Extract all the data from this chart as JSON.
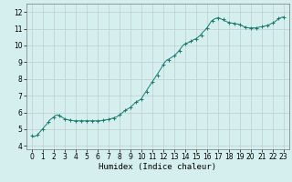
{
  "title": "",
  "xlabel": "Humidex (Indice chaleur)",
  "ylabel": "",
  "xlim": [
    -0.5,
    23.5
  ],
  "ylim": [
    3.8,
    12.5
  ],
  "yticks": [
    4,
    5,
    6,
    7,
    8,
    9,
    10,
    11,
    12
  ],
  "xticks": [
    0,
    1,
    2,
    3,
    4,
    5,
    6,
    7,
    8,
    9,
    10,
    11,
    12,
    13,
    14,
    15,
    16,
    17,
    18,
    19,
    20,
    21,
    22,
    23
  ],
  "line_color": "#1a7a6e",
  "marker_color": "#1a7a6e",
  "bg_color": "#d5efee",
  "grid_color": "#bccece",
  "x": [
    0.0,
    0.1,
    0.2,
    0.3,
    0.4,
    0.5,
    0.6,
    0.7,
    0.8,
    0.9,
    1.0,
    1.1,
    1.2,
    1.3,
    1.4,
    1.5,
    1.6,
    1.7,
    1.8,
    1.9,
    2.0,
    2.1,
    2.2,
    2.3,
    2.4,
    2.5,
    2.6,
    2.7,
    2.8,
    2.9,
    3.0,
    3.1,
    3.2,
    3.3,
    3.4,
    3.5,
    3.6,
    3.7,
    3.8,
    3.9,
    4.0,
    4.2,
    4.4,
    4.6,
    4.8,
    5.0,
    5.2,
    5.4,
    5.6,
    5.8,
    6.0,
    6.2,
    6.4,
    6.6,
    6.8,
    7.0,
    7.2,
    7.4,
    7.6,
    7.8,
    8.0,
    8.2,
    8.4,
    8.6,
    8.8,
    9.0,
    9.2,
    9.4,
    9.6,
    9.8,
    10.0,
    10.2,
    10.4,
    10.6,
    10.8,
    11.0,
    11.2,
    11.4,
    11.6,
    11.8,
    12.0,
    12.2,
    12.4,
    12.6,
    12.8,
    13.0,
    13.2,
    13.4,
    13.6,
    13.8,
    14.0,
    14.2,
    14.4,
    14.6,
    14.8,
    15.0,
    15.2,
    15.4,
    15.6,
    15.8,
    16.0,
    16.2,
    16.4,
    16.6,
    16.8,
    17.0,
    17.2,
    17.4,
    17.6,
    17.8,
    18.0,
    18.2,
    18.4,
    18.6,
    18.8,
    19.0,
    19.2,
    19.4,
    19.6,
    19.8,
    20.0,
    20.2,
    20.4,
    20.6,
    20.8,
    21.0,
    21.2,
    21.4,
    21.6,
    21.8,
    22.0,
    22.2,
    22.4,
    22.6,
    22.8,
    23.0
  ],
  "y": [
    4.6,
    4.55,
    4.55,
    4.58,
    4.6,
    4.65,
    4.72,
    4.8,
    4.88,
    4.95,
    5.02,
    5.1,
    5.18,
    5.25,
    5.32,
    5.42,
    5.5,
    5.58,
    5.62,
    5.68,
    5.72,
    5.78,
    5.82,
    5.85,
    5.85,
    5.82,
    5.78,
    5.73,
    5.7,
    5.66,
    5.62,
    5.6,
    5.58,
    5.56,
    5.55,
    5.54,
    5.53,
    5.52,
    5.51,
    5.5,
    5.5,
    5.5,
    5.5,
    5.5,
    5.5,
    5.5,
    5.5,
    5.5,
    5.5,
    5.5,
    5.5,
    5.5,
    5.52,
    5.54,
    5.56,
    5.58,
    5.62,
    5.66,
    5.7,
    5.75,
    5.85,
    5.95,
    6.05,
    6.15,
    6.22,
    6.3,
    6.42,
    6.55,
    6.65,
    6.72,
    6.8,
    7.02,
    7.22,
    7.42,
    7.62,
    7.82,
    8.02,
    8.22,
    8.42,
    8.62,
    8.85,
    9.05,
    9.15,
    9.22,
    9.3,
    9.38,
    9.5,
    9.65,
    9.82,
    10.0,
    10.1,
    10.15,
    10.2,
    10.28,
    10.35,
    10.4,
    10.5,
    10.62,
    10.78,
    10.9,
    11.05,
    11.25,
    11.45,
    11.55,
    11.62,
    11.65,
    11.62,
    11.55,
    11.48,
    11.42,
    11.38,
    11.35,
    11.33,
    11.3,
    11.28,
    11.25,
    11.18,
    11.12,
    11.08,
    11.05,
    11.05,
    11.05,
    11.05,
    11.07,
    11.1,
    11.12,
    11.15,
    11.18,
    11.22,
    11.28,
    11.35,
    11.42,
    11.52,
    11.62,
    11.68,
    11.7
  ],
  "marker_x": [
    0,
    0.5,
    1.0,
    1.5,
    2.0,
    2.5,
    3.0,
    3.5,
    4.0,
    4.5,
    5.0,
    5.5,
    6.0,
    6.5,
    7.0,
    7.5,
    8.0,
    8.5,
    9.0,
    9.5,
    10.0,
    10.5,
    11.0,
    11.5,
    12.0,
    12.5,
    13.0,
    13.5,
    14.0,
    14.5,
    15.0,
    15.5,
    16.0,
    16.5,
    17.0,
    17.5,
    18.0,
    18.5,
    19.0,
    19.5,
    20.0,
    20.5,
    21.0,
    21.5,
    22.0,
    22.5,
    23.0
  ],
  "marker_y": [
    4.6,
    4.65,
    5.02,
    5.42,
    5.72,
    5.82,
    5.62,
    5.54,
    5.5,
    5.5,
    5.5,
    5.5,
    5.51,
    5.54,
    5.58,
    5.66,
    5.85,
    6.15,
    6.3,
    6.65,
    6.8,
    7.22,
    7.82,
    8.22,
    8.85,
    9.15,
    9.38,
    9.65,
    10.1,
    10.28,
    10.4,
    10.62,
    11.05,
    11.45,
    11.65,
    11.55,
    11.38,
    11.33,
    11.25,
    11.08,
    11.05,
    11.05,
    11.12,
    11.18,
    11.35,
    11.62,
    11.7
  ]
}
